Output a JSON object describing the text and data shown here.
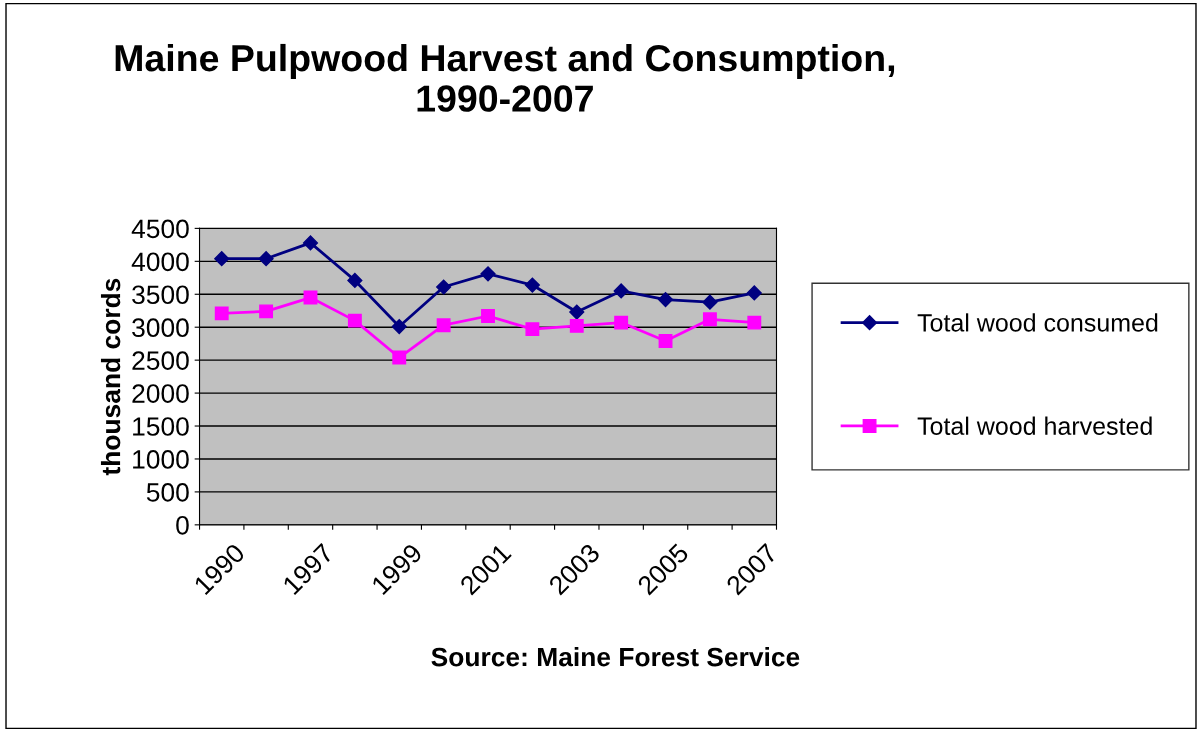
{
  "chart_data": {
    "type": "line",
    "title": "Maine Pulpwood Harvest and Consumption,\n1990-2007",
    "ylabel": "thousand cords",
    "categories": [
      "1990",
      null,
      "1997",
      null,
      "1999",
      null,
      "2001",
      null,
      "2003",
      null,
      "2005",
      null,
      "2007"
    ],
    "series": [
      {
        "name": "Total wood consumed",
        "color": "#000080",
        "marker": "diamond",
        "values": [
          4040,
          4040,
          4280,
          3710,
          3010,
          3610,
          3810,
          3640,
          3230,
          3550,
          3420,
          3380,
          3520
        ]
      },
      {
        "name": "Total wood harvested",
        "color": "#ff00ff",
        "marker": "square",
        "values": [
          3210,
          3240,
          3450,
          3100,
          2540,
          3030,
          3170,
          2970,
          3020,
          3070,
          2790,
          3120,
          3070
        ]
      }
    ],
    "ylim": [
      0,
      4500
    ],
    "yticks": [
      0,
      500,
      1000,
      1500,
      2000,
      2500,
      3000,
      3500,
      4000,
      4500
    ],
    "grid": "y",
    "legend": "right",
    "annotations": [
      "Source: Maine Forest Service"
    ]
  }
}
